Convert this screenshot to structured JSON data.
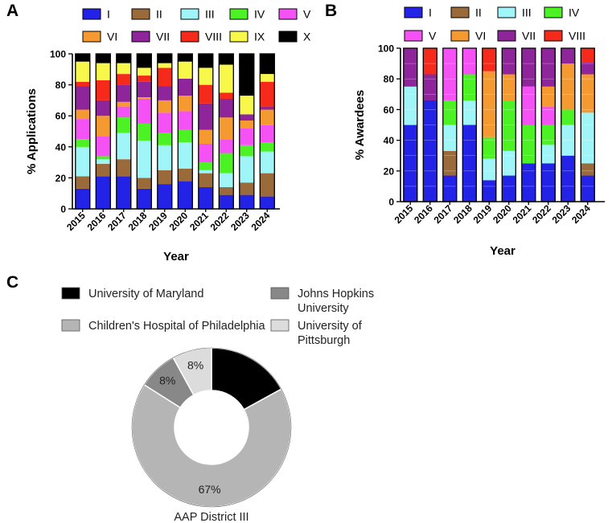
{
  "panels": {
    "a": "A",
    "b": "B",
    "c": "C"
  },
  "colors": {
    "I": "#2323e8",
    "II": "#9a6a3a",
    "III": "#9ff5f8",
    "IV": "#4cf223",
    "V": "#f552f5",
    "VI": "#f59a30",
    "VII": "#8f259a",
    "VIII": "#f52a1a",
    "IX": "#f8f84a",
    "X": "#000000"
  },
  "chart_data": [
    {
      "id": "A",
      "type": "bar",
      "stacked": true,
      "title": "",
      "xlabel": "Year",
      "ylabel": "% Applications",
      "ylim": [
        0,
        100
      ],
      "yticks": [
        "0",
        "20",
        "40",
        "60",
        "80",
        "100"
      ],
      "categories": [
        "2015",
        "2016",
        "2017",
        "2018",
        "2019",
        "2020",
        "2021",
        "2022",
        "2023",
        "2024"
      ],
      "legend": [
        "I",
        "II",
        "III",
        "IV",
        "V",
        "VI",
        "VII",
        "VIII",
        "IX",
        "X"
      ],
      "series": [
        {
          "name": "I",
          "values": [
            13,
            21,
            21,
            13,
            16,
            18,
            14,
            9,
            9,
            8
          ]
        },
        {
          "name": "II",
          "values": [
            8,
            8,
            11,
            7,
            9,
            8,
            9,
            5,
            8,
            15
          ]
        },
        {
          "name": "III",
          "values": [
            19,
            3,
            17,
            24,
            16,
            17,
            2,
            9,
            17,
            14
          ]
        },
        {
          "name": "IV",
          "values": [
            5,
            2,
            10,
            11,
            8,
            8,
            5,
            13,
            7,
            6
          ]
        },
        {
          "name": "V",
          "values": [
            13,
            13,
            7,
            16,
            13,
            12,
            12,
            9,
            11,
            11
          ]
        },
        {
          "name": "VI",
          "values": [
            6,
            13,
            3,
            1,
            8,
            10,
            9,
            14,
            5,
            10
          ]
        },
        {
          "name": "VII",
          "values": [
            15,
            10,
            11,
            10,
            9,
            11,
            17,
            12,
            4,
            2
          ]
        },
        {
          "name": "VIII",
          "values": [
            3,
            13,
            7,
            4,
            12,
            0,
            12,
            4,
            0,
            16
          ]
        },
        {
          "name": "IX",
          "values": [
            13,
            11,
            7,
            5,
            3,
            11,
            11,
            18,
            12,
            5
          ]
        },
        {
          "name": "X",
          "values": [
            5,
            6,
            6,
            9,
            6,
            5,
            9,
            7,
            27,
            13
          ]
        }
      ]
    },
    {
      "id": "B",
      "type": "bar",
      "stacked": true,
      "title": "",
      "xlabel": "Year",
      "ylabel": "% Awardees",
      "ylim": [
        0,
        100
      ],
      "yticks": [
        "0",
        "20",
        "40",
        "60",
        "80",
        "100"
      ],
      "categories": [
        "2015",
        "2016",
        "2017",
        "2018",
        "2019",
        "2020",
        "2021",
        "2022",
        "2023",
        "2024"
      ],
      "legend": [
        "I",
        "II",
        "III",
        "IV",
        "V",
        "VI",
        "VII",
        "VIII"
      ],
      "series": [
        {
          "name": "I",
          "values": [
            50,
            66,
            17,
            50,
            14,
            17,
            25,
            25,
            30,
            17
          ]
        },
        {
          "name": "II",
          "values": [
            0,
            0,
            16,
            0,
            0,
            0,
            0,
            0,
            0,
            8
          ]
        },
        {
          "name": "III",
          "values": [
            25,
            0,
            17,
            16,
            14,
            16,
            0,
            12,
            20,
            33
          ]
        },
        {
          "name": "IV",
          "values": [
            0,
            0,
            16,
            17,
            14,
            33,
            25,
            13,
            10,
            0
          ]
        },
        {
          "name": "V",
          "values": [
            0,
            0,
            34,
            17,
            0,
            0,
            25,
            12,
            0,
            0
          ]
        },
        {
          "name": "VI",
          "values": [
            0,
            0,
            0,
            0,
            43,
            17,
            0,
            13,
            30,
            25
          ]
        },
        {
          "name": "VII",
          "values": [
            25,
            17,
            0,
            0,
            0,
            17,
            25,
            25,
            10,
            8
          ]
        },
        {
          "name": "VIII",
          "values": [
            0,
            17,
            0,
            0,
            15,
            0,
            0,
            0,
            0,
            9
          ]
        }
      ]
    },
    {
      "id": "C",
      "type": "pie",
      "donut": true,
      "title": "",
      "caption": "AAP  District III",
      "slices": [
        {
          "name": "University of Maryland",
          "value": 17,
          "label": "",
          "color": "#000000"
        },
        {
          "name": "Children's Hospital of Philadelphia",
          "value": 67,
          "label": "67%",
          "color": "#b5b5b5"
        },
        {
          "name": "Johns Hopkins University",
          "value": 8,
          "label": "8%",
          "color": "#888888"
        },
        {
          "name": "University of Pittsburgh",
          "value": 8,
          "label": "8%",
          "color": "#dcdcdc"
        }
      ],
      "legend": [
        {
          "lines": [
            "University of Maryland"
          ],
          "color": "#000000"
        },
        {
          "lines": [
            "Johns Hopkins",
            "University"
          ],
          "color": "#888888"
        },
        {
          "lines": [
            "Children's Hospital of Philadelphia"
          ],
          "color": "#b5b5b5"
        },
        {
          "lines": [
            "University of",
            "Pittsburgh"
          ],
          "color": "#dcdcdc"
        }
      ]
    }
  ]
}
